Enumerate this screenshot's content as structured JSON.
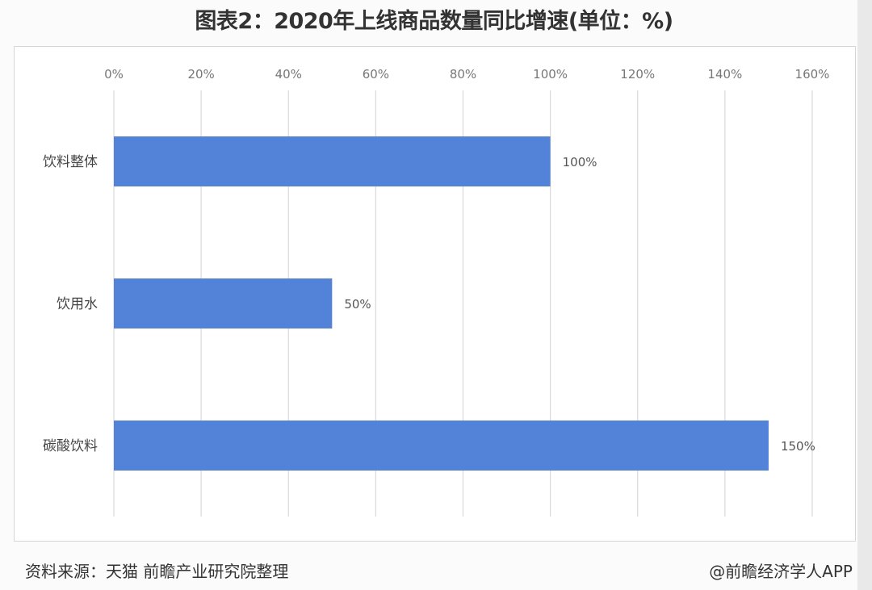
{
  "chart_data": {
    "type": "bar",
    "orientation": "horizontal",
    "title": "图表2：2020年上线商品数量同比增速(单位：%)",
    "categories": [
      "饮料整体",
      "饮用水",
      "碳酸饮料"
    ],
    "values": [
      100,
      50,
      150
    ],
    "data_labels": [
      "100%",
      "50%",
      "150%"
    ],
    "xlim": [
      0,
      160
    ],
    "x_ticks": [
      "0%",
      "20%",
      "40%",
      "60%",
      "80%",
      "100%",
      "120%",
      "140%",
      "160%"
    ],
    "x_axis_position": "top",
    "grid": true,
    "bar_color": "#5283d8",
    "legend": "none"
  },
  "footer": {
    "source": "资料来源：天猫 前瞻产业研究院整理",
    "brand": "@前瞻经济学人APP"
  }
}
